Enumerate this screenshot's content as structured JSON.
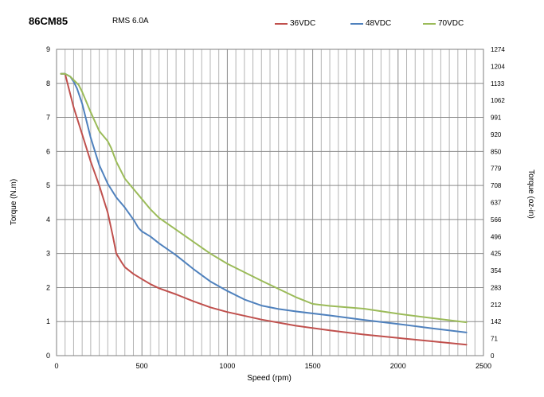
{
  "chart_data": {
    "type": "line",
    "title": "86CM85",
    "subtitle": "RMS 6.0A",
    "xlabel": "Speed (rpm)",
    "ylabel": "Torque (N.m)",
    "y2label": "Torque (oz-in)",
    "xlim": [
      0,
      2500
    ],
    "ylim": [
      0,
      9
    ],
    "x_ticks": [
      "0",
      "500",
      "1000",
      "1500",
      "2000",
      "2500"
    ],
    "y_ticks": [
      "0",
      "1",
      "2",
      "3",
      "4",
      "5",
      "6",
      "7",
      "8",
      "9"
    ],
    "y2_ticks": [
      "0",
      "71",
      "142",
      "212",
      "283",
      "354",
      "425",
      "496",
      "566",
      "637",
      "708",
      "779",
      "850",
      "920",
      "991",
      "1062",
      "1133",
      "1204",
      "1274"
    ],
    "grid": true,
    "legend_position": "top-right",
    "series": [
      {
        "name": "36VDC",
        "color": "#c0504d",
        "x": [
          25,
          50,
          100,
          150,
          200,
          250,
          300,
          330,
          350,
          380,
          400,
          450,
          500,
          550,
          600,
          700,
          800,
          900,
          1000,
          1200,
          1400,
          1600,
          1800,
          2000,
          2200,
          2400
        ],
        "y": [
          8.28,
          8.28,
          7.3,
          6.5,
          5.7,
          5.0,
          4.2,
          3.5,
          3.0,
          2.75,
          2.6,
          2.4,
          2.25,
          2.1,
          1.98,
          1.8,
          1.6,
          1.42,
          1.28,
          1.06,
          0.88,
          0.74,
          0.62,
          0.52,
          0.42,
          0.32
        ]
      },
      {
        "name": "48VDC",
        "color": "#4f81bd",
        "x": [
          25,
          50,
          80,
          100,
          120,
          150,
          200,
          250,
          300,
          350,
          400,
          450,
          480,
          500,
          550,
          600,
          700,
          800,
          900,
          1000,
          1100,
          1200,
          1300,
          1400,
          1600,
          1800,
          2000,
          2200,
          2400
        ],
        "y": [
          8.28,
          8.28,
          8.2,
          8.05,
          7.85,
          7.4,
          6.4,
          5.6,
          5.05,
          4.65,
          4.35,
          4.0,
          3.75,
          3.65,
          3.5,
          3.3,
          2.95,
          2.55,
          2.18,
          1.9,
          1.65,
          1.47,
          1.37,
          1.3,
          1.18,
          1.05,
          0.93,
          0.8,
          0.68
        ]
      },
      {
        "name": "70VDC",
        "color": "#9bbb59",
        "x": [
          25,
          50,
          80,
          100,
          130,
          150,
          200,
          250,
          300,
          320,
          350,
          400,
          450,
          500,
          550,
          600,
          700,
          800,
          900,
          1000,
          1200,
          1400,
          1500,
          1600,
          1800,
          2000,
          2200,
          2400
        ],
        "y": [
          8.28,
          8.28,
          8.2,
          8.1,
          7.95,
          7.75,
          7.15,
          6.6,
          6.3,
          6.1,
          5.7,
          5.2,
          4.9,
          4.6,
          4.3,
          4.05,
          3.7,
          3.35,
          3.0,
          2.7,
          2.2,
          1.72,
          1.52,
          1.46,
          1.38,
          1.23,
          1.1,
          0.98
        ]
      }
    ]
  }
}
